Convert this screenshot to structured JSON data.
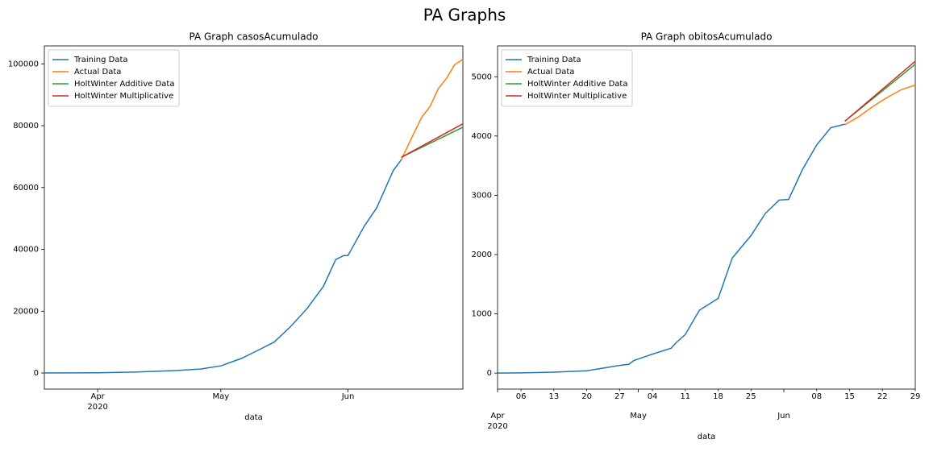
{
  "title": "PA Graphs",
  "chart_data": [
    {
      "type": "line",
      "title": "PA Graph casosAcumulado",
      "xlabel": "data",
      "xlim": [
        "2020-03-19",
        "2020-06-29"
      ],
      "xticks": [
        {
          "value": "2020-04-01",
          "label": "Apr\n2020"
        },
        {
          "value": "2020-05-01",
          "label": "May"
        },
        {
          "value": "2020-06-01",
          "label": "Jun"
        }
      ],
      "ylim": [
        -5200,
        105800
      ],
      "yticks": [
        0,
        20000,
        40000,
        60000,
        80000,
        100000
      ],
      "legend": "upper left",
      "series": [
        {
          "name": "Training Data",
          "color": "#1f77b4",
          "x": [
            "2020-03-19",
            "2020-04-01",
            "2020-04-10",
            "2020-04-20",
            "2020-04-26",
            "2020-05-01",
            "2020-05-06",
            "2020-05-10",
            "2020-05-14",
            "2020-05-18",
            "2020-05-22",
            "2020-05-26",
            "2020-05-29",
            "2020-05-31",
            "2020-06-01",
            "2020-06-05",
            "2020-06-08",
            "2020-06-10",
            "2020-06-12",
            "2020-06-14"
          ],
          "values": [
            0,
            100,
            300,
            800,
            1300,
            2300,
            4700,
            7300,
            10000,
            15000,
            20800,
            28000,
            36700,
            38000,
            38000,
            47600,
            53400,
            59400,
            65400,
            69000
          ]
        },
        {
          "name": "Actual Data",
          "color": "#ff7f0e",
          "x": [
            "2020-06-14",
            "2020-06-16",
            "2020-06-19",
            "2020-06-21",
            "2020-06-23",
            "2020-06-25",
            "2020-06-27",
            "2020-06-29"
          ],
          "values": [
            69000,
            74700,
            82800,
            86200,
            92000,
            95300,
            99700,
            101500
          ]
        },
        {
          "name": "HoltWinter Additive Data",
          "color": "#2ca02c",
          "x": [
            "2020-06-14",
            "2020-06-29"
          ],
          "values": [
            69800,
            79500
          ]
        },
        {
          "name": "HoltWinter Multiplicative",
          "color": "#d62728",
          "x": [
            "2020-06-14",
            "2020-06-29"
          ],
          "values": [
            69800,
            80600
          ]
        }
      ]
    },
    {
      "type": "line",
      "title": "PA Graph obitosAcumulado",
      "xlabel": "data",
      "xlim": [
        "2020-04-01",
        "2020-06-29"
      ],
      "xticks": [
        {
          "value": "2020-04-01",
          "label": "Apr\n2020"
        },
        {
          "value": "2020-05-01",
          "label": "May"
        },
        {
          "value": "2020-06-01",
          "label": "Jun"
        }
      ],
      "xticks_minor": [
        {
          "value": "2020-04-06",
          "label": "06"
        },
        {
          "value": "2020-04-13",
          "label": "13"
        },
        {
          "value": "2020-04-20",
          "label": "20"
        },
        {
          "value": "2020-04-27",
          "label": "27"
        },
        {
          "value": "2020-05-04",
          "label": "04"
        },
        {
          "value": "2020-05-11",
          "label": "11"
        },
        {
          "value": "2020-05-18",
          "label": "18"
        },
        {
          "value": "2020-05-25",
          "label": "25"
        },
        {
          "value": "2020-06-08",
          "label": "08"
        },
        {
          "value": "2020-06-15",
          "label": "15"
        },
        {
          "value": "2020-06-22",
          "label": "22"
        },
        {
          "value": "2020-06-29",
          "label": "29"
        }
      ],
      "ylim": [
        -270,
        5520
      ],
      "yticks": [
        0,
        1000,
        2000,
        3000,
        4000,
        5000
      ],
      "legend": "upper left",
      "series": [
        {
          "name": "Training Data",
          "color": "#1f77b4",
          "x": [
            "2020-04-01",
            "2020-04-06",
            "2020-04-13",
            "2020-04-20",
            "2020-04-27",
            "2020-04-29",
            "2020-04-30",
            "2020-05-04",
            "2020-05-08",
            "2020-05-09",
            "2020-05-11",
            "2020-05-14",
            "2020-05-18",
            "2020-05-21",
            "2020-05-25",
            "2020-05-28",
            "2020-05-31",
            "2020-06-02",
            "2020-06-05",
            "2020-06-08",
            "2020-06-11",
            "2020-06-14"
          ],
          "values": [
            0,
            3,
            15,
            40,
            130,
            150,
            210,
            320,
            420,
            510,
            650,
            1060,
            1260,
            1940,
            2320,
            2690,
            2920,
            2930,
            3440,
            3850,
            4140,
            4200
          ]
        },
        {
          "name": "Actual Data",
          "color": "#ff7f0e",
          "x": [
            "2020-06-14",
            "2020-06-17",
            "2020-06-20",
            "2020-06-23",
            "2020-06-26",
            "2020-06-29"
          ],
          "values": [
            4190,
            4330,
            4500,
            4650,
            4780,
            4860
          ]
        },
        {
          "name": "HoltWinter Additive Data",
          "color": "#2ca02c",
          "x": [
            "2020-06-14",
            "2020-06-29"
          ],
          "values": [
            4250,
            5210
          ]
        },
        {
          "name": "HoltWinter Multiplicative",
          "color": "#d62728",
          "x": [
            "2020-06-14",
            "2020-06-29"
          ],
          "values": [
            4250,
            5260
          ]
        }
      ]
    }
  ]
}
